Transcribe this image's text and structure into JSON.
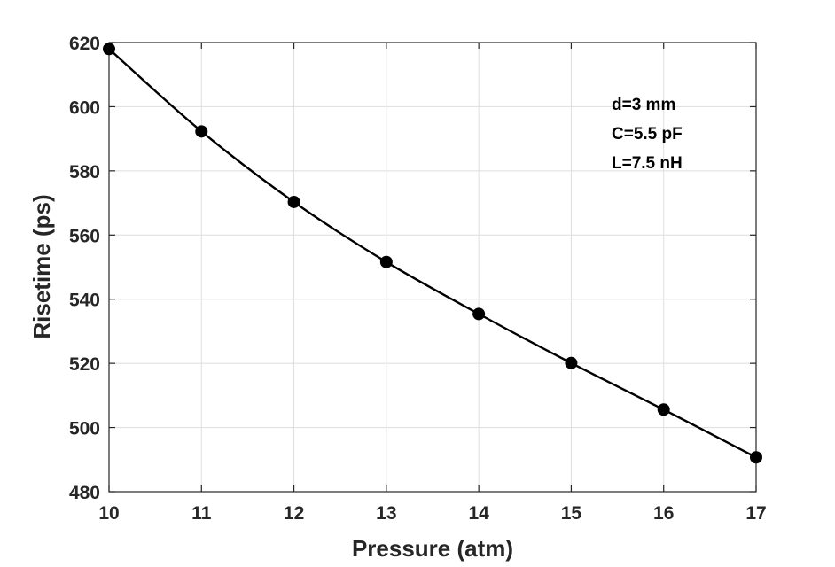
{
  "chart_data": {
    "type": "line",
    "title": "",
    "xlabel": "Pressure (atm)",
    "ylabel": "Risetime (ps)",
    "xlim": [
      10,
      17
    ],
    "ylim": [
      480,
      620
    ],
    "x_ticks": [
      10,
      11,
      12,
      13,
      14,
      15,
      16,
      17
    ],
    "y_ticks": [
      480,
      500,
      520,
      540,
      560,
      580,
      600,
      620
    ],
    "grid": true,
    "box": true,
    "series": [
      {
        "x": [
          10,
          11,
          12,
          13,
          14,
          15,
          16,
          17
        ],
        "y": [
          618,
          592.3,
          570.3,
          551.6,
          535.4,
          520.1,
          505.6,
          490.7
        ],
        "color": "#000000",
        "marker": "filled-circle",
        "line": "solid"
      }
    ],
    "annotations": [
      "d=3 mm",
      "C=5.5 pF",
      "L=7.5 nH"
    ]
  }
}
